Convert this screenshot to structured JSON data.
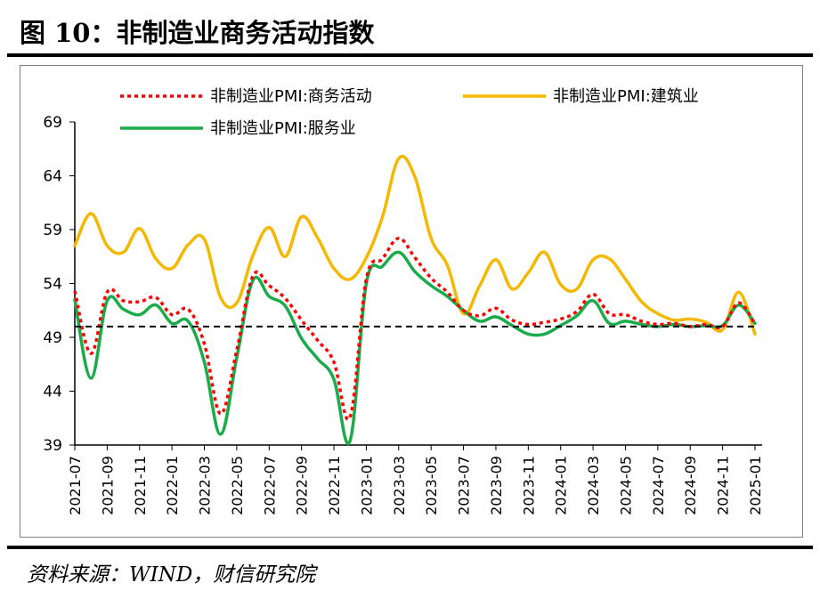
{
  "figure": {
    "title": "图 10：非制造业商务活动指数",
    "source": "资料来源：WIND，财信研究院"
  },
  "chart_data": {
    "type": "line",
    "x": [
      "2021-07",
      "2021-08",
      "2021-09",
      "2021-10",
      "2021-11",
      "2021-12",
      "2022-01",
      "2022-02",
      "2022-03",
      "2022-04",
      "2022-05",
      "2022-06",
      "2022-07",
      "2022-08",
      "2022-09",
      "2022-10",
      "2022-11",
      "2022-12",
      "2023-01",
      "2023-02",
      "2023-03",
      "2023-04",
      "2023-05",
      "2023-06",
      "2023-07",
      "2023-08",
      "2023-09",
      "2023-10",
      "2023-11",
      "2023-12",
      "2024-01",
      "2024-02",
      "2024-03",
      "2024-04",
      "2024-05",
      "2024-06",
      "2024-07",
      "2024-08",
      "2024-09",
      "2024-10",
      "2024-11",
      "2024-12",
      "2025-01"
    ],
    "xticks": [
      "2021-07",
      "2021-09",
      "2021-11",
      "2022-01",
      "2022-03",
      "2022-05",
      "2022-07",
      "2022-09",
      "2022-11",
      "2023-01",
      "2023-03",
      "2023-05",
      "2023-07",
      "2023-09",
      "2023-11",
      "2024-01",
      "2024-03",
      "2024-05",
      "2024-07",
      "2024-09",
      "2024-11",
      "2025-01"
    ],
    "yticks": [
      39,
      44,
      49,
      54,
      59,
      64,
      69
    ],
    "ylim": [
      39,
      69
    ],
    "reference_line": {
      "y": 50,
      "style": "dashed",
      "color": "#000000"
    },
    "series": [
      {
        "name": "非制造业PMI:商务活动",
        "color": "#ff0000",
        "style": "dotted",
        "values": [
          53.3,
          47.5,
          53.2,
          52.4,
          52.3,
          52.7,
          51.1,
          51.6,
          48.4,
          41.9,
          47.8,
          54.7,
          53.8,
          52.6,
          50.6,
          48.7,
          46.7,
          41.6,
          54.4,
          56.3,
          58.2,
          56.4,
          54.5,
          53.2,
          51.5,
          51.0,
          51.7,
          50.6,
          50.2,
          50.4,
          50.7,
          51.4,
          53.0,
          51.2,
          51.1,
          50.5,
          50.2,
          50.3,
          50.0,
          50.2,
          50.0,
          52.2,
          50.2
        ]
      },
      {
        "name": "非制造业PMI:建筑业",
        "color": "#f5b800",
        "style": "solid",
        "values": [
          57.5,
          60.5,
          57.5,
          56.9,
          59.1,
          56.3,
          55.4,
          57.6,
          58.1,
          52.7,
          52.2,
          56.6,
          59.2,
          56.5,
          60.2,
          58.2,
          55.4,
          54.4,
          56.4,
          60.2,
          65.6,
          63.9,
          58.2,
          55.7,
          51.2,
          53.8,
          56.2,
          53.5,
          55.0,
          56.9,
          53.9,
          53.5,
          56.2,
          56.3,
          54.4,
          52.3,
          51.2,
          50.6,
          50.7,
          50.4,
          49.7,
          53.2,
          49.3
        ]
      },
      {
        "name": "非制造业PMI:服务业",
        "color": "#1aab4b",
        "style": "solid",
        "values": [
          52.5,
          45.2,
          52.4,
          51.6,
          51.1,
          52.0,
          50.3,
          50.5,
          46.7,
          40.0,
          47.1,
          54.3,
          52.8,
          51.9,
          48.9,
          47.0,
          45.1,
          39.4,
          54.0,
          55.6,
          56.9,
          55.1,
          53.8,
          52.8,
          51.5,
          50.5,
          50.9,
          50.1,
          49.3,
          49.3,
          50.1,
          51.0,
          52.4,
          50.3,
          50.5,
          50.2,
          50.0,
          50.2,
          50.0,
          50.1,
          50.1,
          52.0,
          50.3
        ]
      }
    ]
  }
}
